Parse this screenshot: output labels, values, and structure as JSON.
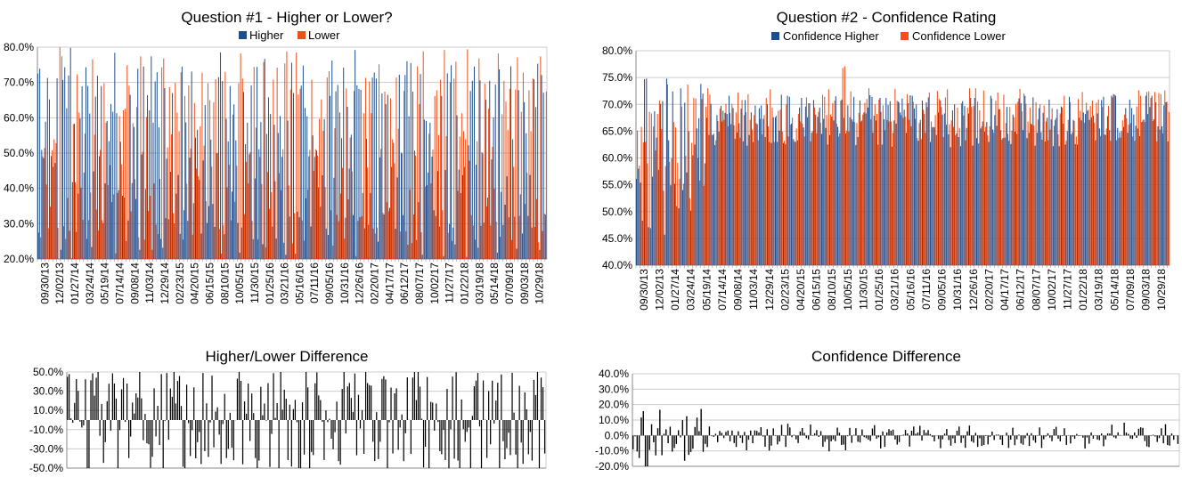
{
  "colors": {
    "higher": "#1f4e8c",
    "lower": "#ef4f1a",
    "diff": "#000000",
    "grid": "#cccccc",
    "axis": "#888888"
  },
  "chart_data": [
    {
      "id": "q1",
      "type": "bar",
      "title": "Question #1 - Higher or Lower?",
      "legend": [
        "Higher",
        "Lower"
      ],
      "legend_position": "top",
      "ylim": [
        20,
        80
      ],
      "yticks": [
        "20.0%",
        "30.0%",
        "40.0%",
        "50.0%",
        "60.0%",
        "70.0%",
        "80.0%"
      ],
      "ytick_values": [
        20,
        30,
        40,
        50,
        60,
        70,
        80
      ],
      "xtick_labels": [
        "09/30/13",
        "12/02/13",
        "01/27/14",
        "03/24/14",
        "05/19/14",
        "07/14/14",
        "09/08/14",
        "11/03/14",
        "12/29/14",
        "02/23/15",
        "04/20/15",
        "06/15/15",
        "08/10/15",
        "10/05/15",
        "11/30/15",
        "01/25/16",
        "03/21/16",
        "05/16/16",
        "07/11/16",
        "09/05/16",
        "10/31/16",
        "12/26/16",
        "02/20/17",
        "04/17/17",
        "06/12/17",
        "08/07/17",
        "10/02/17",
        "11/27/17",
        "01/22/18",
        "03/19/18",
        "05/14/18",
        "07/09/18",
        "09/03/18",
        "10/29/18"
      ],
      "n_points": 265,
      "series": [
        {
          "name": "Higher",
          "values_summary": "weekly percentages alternating between roughly 22% and 80%",
          "values": []
        },
        {
          "name": "Lower",
          "values_summary": "complement of Higher (100% - Higher)",
          "values": []
        }
      ],
      "grid": true
    },
    {
      "id": "q2",
      "type": "bar",
      "title": "Question #2 - Confidence Rating",
      "legend": [
        "Confidence Higher",
        "Confidence Lower"
      ],
      "legend_position": "top",
      "ylim": [
        40,
        80
      ],
      "yticks": [
        "40.0%",
        "45.0%",
        "50.0%",
        "55.0%",
        "60.0%",
        "65.0%",
        "70.0%",
        "75.0%",
        "80.0%"
      ],
      "ytick_values": [
        40,
        45,
        50,
        55,
        60,
        65,
        70,
        75,
        80
      ],
      "xtick_labels": [
        "09/30/13",
        "12/02/13",
        "01/27/14",
        "03/24/14",
        "05/19/14",
        "07/14/14",
        "09/08/14",
        "11/03/14",
        "12/29/14",
        "02/23/15",
        "04/20/15",
        "06/15/15",
        "08/10/15",
        "10/05/15",
        "11/30/15",
        "01/25/16",
        "03/21/16",
        "05/16/16",
        "07/11/16",
        "09/05/16",
        "10/31/16",
        "12/26/16",
        "02/20/17",
        "04/17/17",
        "06/12/17",
        "08/07/17",
        "10/02/17",
        "11/27/17",
        "01/22/18",
        "03/19/18",
        "05/14/18",
        "07/09/18",
        "09/03/18",
        "10/29/18"
      ],
      "n_points": 265,
      "series": [
        {
          "name": "Confidence Higher",
          "values_summary": "roughly 45%-78% early, settling near 65%-72%",
          "values": []
        },
        {
          "name": "Confidence Lower",
          "values_summary": "roughly 50%-75% early, settling near 65%-73%",
          "values": []
        }
      ],
      "grid": true
    },
    {
      "id": "diff1",
      "type": "bar",
      "title": "Higher/Lower Difference",
      "ylim": [
        -50,
        50
      ],
      "yticks": [
        "-50.0%",
        "-30.0%",
        "-10.0%",
        "10.0%",
        "30.0%",
        "50.0%"
      ],
      "ytick_values": [
        -50,
        -30,
        -10,
        10,
        30,
        50
      ],
      "n_points": 265,
      "series": [
        {
          "name": "",
          "values_summary": "Higher minus Lower, mostly between -45% and 50%",
          "values": []
        }
      ],
      "grid": true
    },
    {
      "id": "diff2",
      "type": "bar",
      "title": "Confidence Difference",
      "ylim": [
        -20,
        40
      ],
      "yticks": [
        "-20.0%",
        "-10.0%",
        "0.0%",
        "10.0%",
        "20.0%",
        "30.0%",
        "40.0%"
      ],
      "ytick_values": [
        -20,
        -10,
        0,
        10,
        20,
        30,
        40
      ],
      "n_points": 265,
      "series": [
        {
          "name": "",
          "values_summary": "Confidence Higher minus Confidence Lower, mostly between -18% and 30%",
          "values": []
        }
      ],
      "grid": true
    }
  ]
}
